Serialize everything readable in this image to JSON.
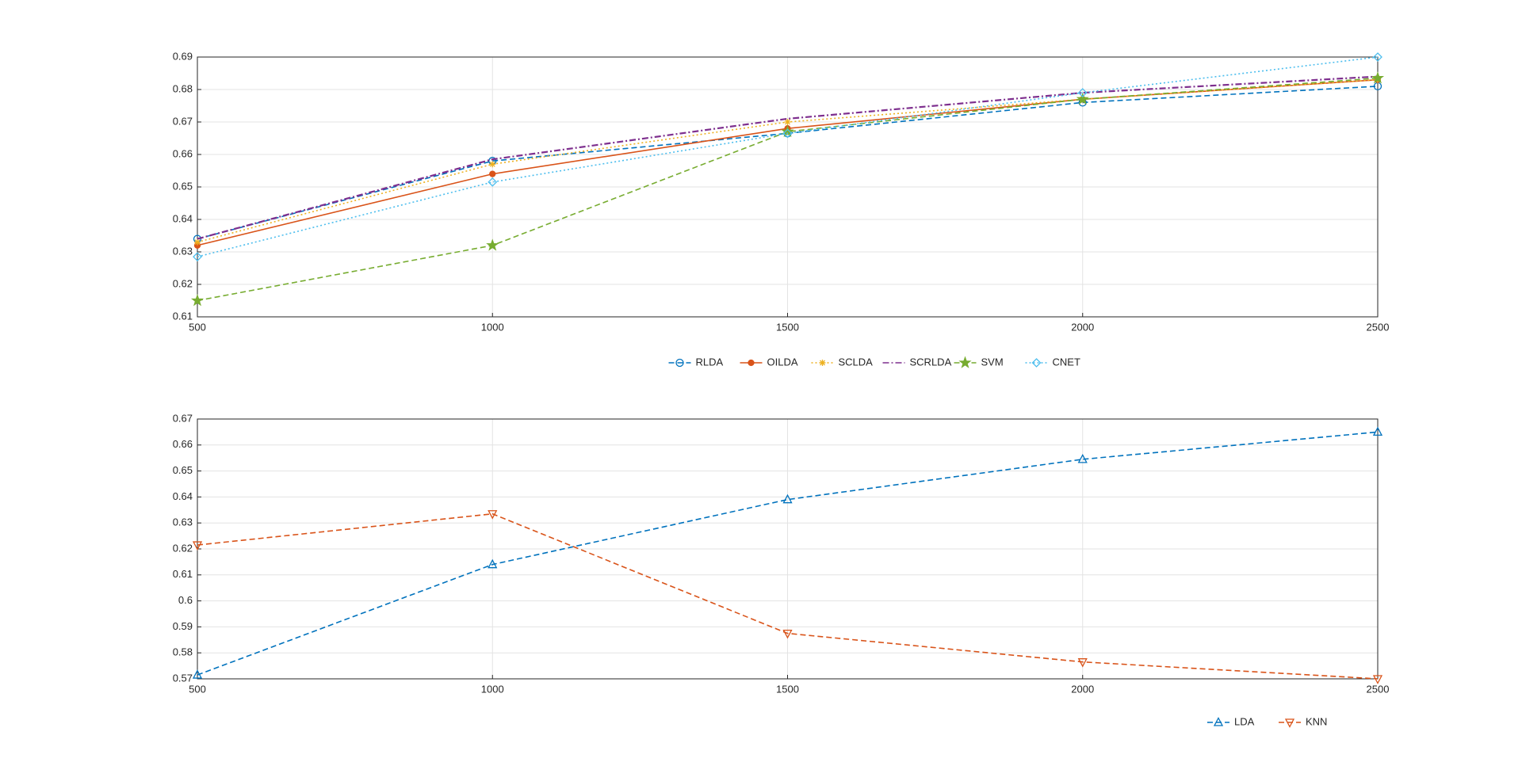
{
  "chart_data": [
    {
      "type": "line",
      "x": [
        500,
        1000,
        1500,
        2000,
        2500
      ],
      "xlim": [
        500,
        2500
      ],
      "xticks": [
        500,
        1000,
        1500,
        2000,
        2500
      ],
      "ylim": [
        0.61,
        0.69
      ],
      "yticks": [
        0.61,
        0.62,
        0.63,
        0.64,
        0.65,
        0.66,
        0.67,
        0.68,
        0.69
      ],
      "grid": true,
      "legend": "bottom",
      "series": [
        {
          "name": "RLDA",
          "color": "#0072bd",
          "marker": "circle",
          "dash": "dashed",
          "values": [
            0.634,
            0.658,
            0.6665,
            0.676,
            0.681
          ]
        },
        {
          "name": "OILDA",
          "color": "#d95319",
          "marker": "dot",
          "dash": "solid",
          "values": [
            0.632,
            0.654,
            0.668,
            0.677,
            0.683
          ]
        },
        {
          "name": "SCLDA",
          "color": "#edb120",
          "marker": "asterisk",
          "dash": "dotted",
          "values": [
            0.633,
            0.657,
            0.67,
            0.677,
            0.683
          ]
        },
        {
          "name": "SCRLDA",
          "color": "#7e2f8e",
          "marker": "none",
          "dash": "dashdot",
          "values": [
            0.634,
            0.6585,
            0.671,
            0.679,
            0.684
          ]
        },
        {
          "name": "SVM",
          "color": "#77ac30",
          "marker": "star",
          "dash": "dashed",
          "values": [
            0.615,
            0.632,
            0.667,
            0.677,
            0.6835
          ]
        },
        {
          "name": "CNET",
          "color": "#4dbeee",
          "marker": "diamond",
          "dash": "dotted",
          "values": [
            0.6285,
            0.6515,
            0.6665,
            0.679,
            0.69
          ]
        }
      ]
    },
    {
      "type": "line",
      "x": [
        500,
        1000,
        1500,
        2000,
        2500
      ],
      "xlim": [
        500,
        2500
      ],
      "xticks": [
        500,
        1000,
        1500,
        2000,
        2500
      ],
      "ylim": [
        0.57,
        0.67
      ],
      "yticks": [
        0.57,
        0.58,
        0.59,
        0.6,
        0.61,
        0.62,
        0.63,
        0.64,
        0.65,
        0.66,
        0.67
      ],
      "grid": true,
      "legend": "bottom right",
      "series": [
        {
          "name": "LDA",
          "color": "#0072bd",
          "marker": "triangle-up",
          "dash": "dashed",
          "values": [
            0.5715,
            0.614,
            0.639,
            0.6545,
            0.665
          ]
        },
        {
          "name": "KNN",
          "color": "#d95319",
          "marker": "triangle-down",
          "dash": "dashed",
          "values": [
            0.6215,
            0.6335,
            0.5875,
            0.5765,
            0.57
          ]
        }
      ]
    }
  ]
}
